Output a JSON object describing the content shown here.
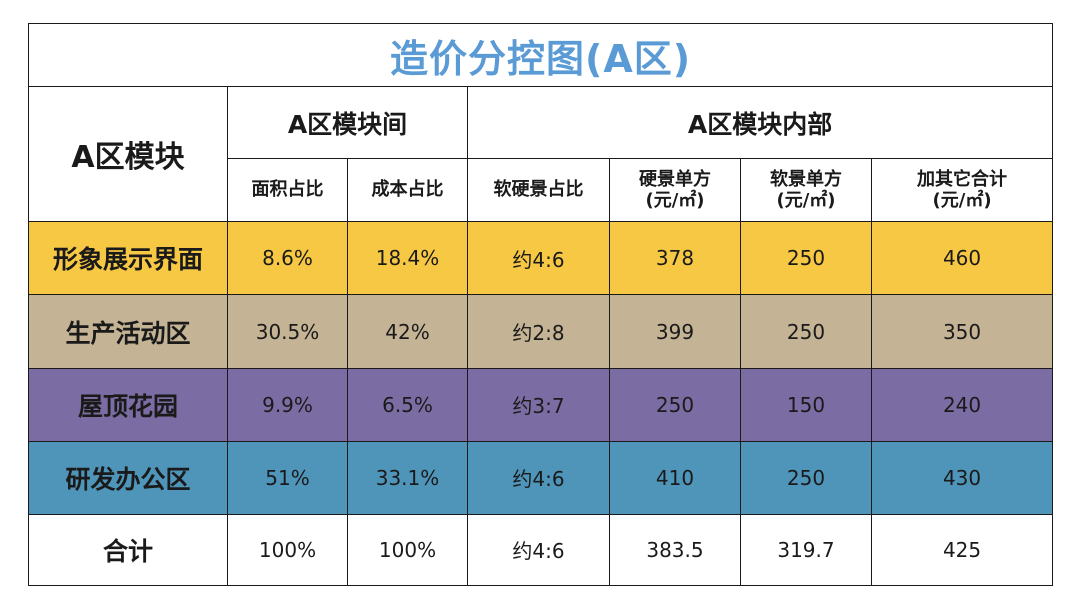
{
  "title": "造价分控图(A区)",
  "header": {
    "corner": "A区模块",
    "group_between": "A区模块间",
    "group_inner": "A区模块内部",
    "columns": [
      {
        "line1": "面积占比",
        "line2": ""
      },
      {
        "line1": "成本占比",
        "line2": ""
      },
      {
        "line1": "软硬景占比",
        "line2": ""
      },
      {
        "line1": "硬景单方",
        "line2": "(元/㎡)"
      },
      {
        "line1": "软景单方",
        "line2": "(元/㎡)"
      },
      {
        "line1": "加其它合计",
        "line2": "(元/㎡)"
      }
    ]
  },
  "colors": {
    "title": "#5b9bd5",
    "row_yellow": "#f7c843",
    "row_tan": "#c4b395",
    "row_purple": "#7b6da3",
    "row_blue": "#4f95ba",
    "row_white": "#ffffff"
  },
  "rows": [
    {
      "label": "形象展示界面",
      "area": "8.6%",
      "cost": "18.4%",
      "ratio": "约4:6",
      "hard": "378",
      "soft": "250",
      "total": "460"
    },
    {
      "label": "生产活动区",
      "area": "30.5%",
      "cost": "42%",
      "ratio": "约2:8",
      "hard": "399",
      "soft": "250",
      "total": "350"
    },
    {
      "label": "屋顶花园",
      "area": "9.9%",
      "cost": "6.5%",
      "ratio": "约3:7",
      "hard": "250",
      "soft": "150",
      "total": "240"
    },
    {
      "label": "研发办公区",
      "area": "51%",
      "cost": "33.1%",
      "ratio": "约4:6",
      "hard": "410",
      "soft": "250",
      "total": "430"
    },
    {
      "label": "合计",
      "area": "100%",
      "cost": "100%",
      "ratio": "约4:6",
      "hard": "383.5",
      "soft": "319.7",
      "total": "425"
    }
  ]
}
